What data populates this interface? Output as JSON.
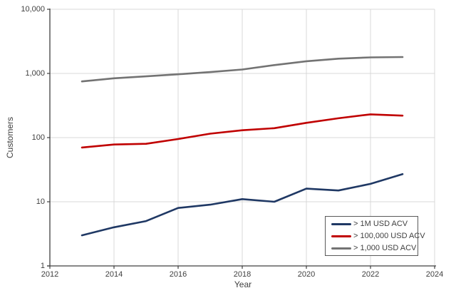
{
  "chart_data": {
    "type": "line",
    "title": "",
    "xlabel": "Year",
    "ylabel": "Customers",
    "x": [
      2013,
      2014,
      2015,
      2016,
      2017,
      2018,
      2019,
      2020,
      2021,
      2022,
      2023
    ],
    "series": [
      {
        "name": "> 1M USD ACV",
        "color": "#1f3864",
        "values": [
          3,
          4,
          5,
          8,
          9,
          11,
          10,
          16,
          15,
          19,
          27
        ]
      },
      {
        "name": "> 100,000 USD ACV",
        "color": "#c00000",
        "values": [
          70,
          78,
          80,
          95,
          115,
          130,
          140,
          170,
          200,
          230,
          220
        ]
      },
      {
        "name": "> 1,000 USD ACV",
        "color": "#737373",
        "values": [
          750,
          840,
          900,
          970,
          1050,
          1150,
          1350,
          1550,
          1700,
          1780,
          1800
        ]
      }
    ],
    "x_axis": {
      "min": 2012,
      "max": 2024,
      "tick_values": [
        2012,
        2014,
        2016,
        2018,
        2020,
        2022,
        2024
      ],
      "tick_labels": [
        "2012",
        "2014",
        "2016",
        "2018",
        "2020",
        "2022",
        "2024"
      ]
    },
    "y_axis": {
      "scale": "log",
      "min": 1,
      "max": 10000,
      "tick_values": [
        1,
        10,
        100,
        1000,
        10000
      ],
      "tick_labels": [
        "1",
        "10",
        "100",
        "1,000",
        "10,000"
      ]
    },
    "grid": true,
    "legend_position": "inside-bottom-right"
  },
  "colors": {
    "axis": "#404040",
    "grid": "#d9d9d9",
    "text": "#404040",
    "legend_border": "#595959",
    "background": "#ffffff"
  }
}
